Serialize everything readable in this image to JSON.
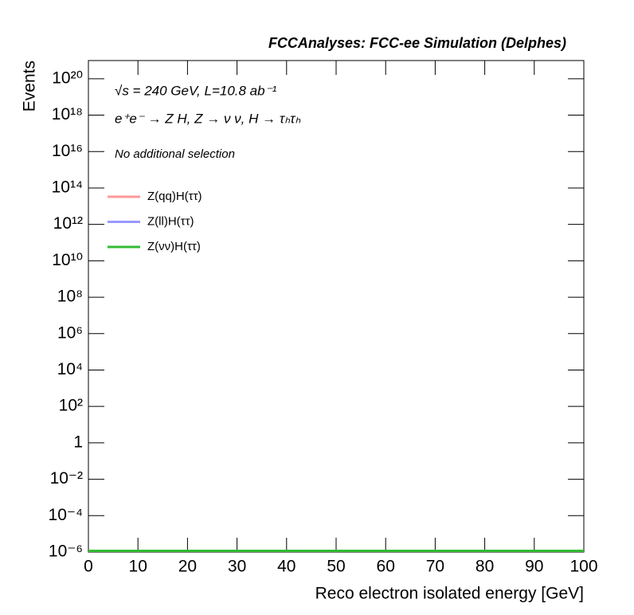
{
  "chart_data": {
    "type": "line",
    "title": "FCCAnalyses: FCC-ee Simulation (Delphes)",
    "annotations": [
      "√s = 240 GeV, L=10.8 ab⁻¹",
      "e⁺e⁻ → Z H, Z → ν ν, H → τₕτₕ",
      "No additional selection"
    ],
    "x_label": "Reco electron isolated energy [GeV]",
    "y_label": "Events",
    "x": [
      0,
      100
    ],
    "series": [
      {
        "name": "Z(qq)H(ττ)",
        "color": "#ff9999",
        "values": [
          1e-06,
          1e-06
        ]
      },
      {
        "name": "Z(ll)H(ττ)",
        "color": "#9999ff",
        "values": [
          1e-06,
          1e-06
        ]
      },
      {
        "name": "Z(νν)H(ττ)",
        "color": "#33bb33",
        "values": [
          1e-06,
          1e-06
        ]
      }
    ],
    "xlim": [
      0,
      100
    ],
    "xticks": [
      0,
      10,
      20,
      30,
      40,
      50,
      60,
      70,
      80,
      90,
      100
    ],
    "ylim": [
      1e-06,
      1e+21
    ],
    "yticks": [
      {
        "value": 1e-06,
        "label": "10⁻⁶"
      },
      {
        "value": 0.0001,
        "label": "10⁻⁴"
      },
      {
        "value": 0.01,
        "label": "10⁻²"
      },
      1,
      {
        "value": 100,
        "label": "10²"
      },
      {
        "value": 10000,
        "label": "10⁴"
      },
      {
        "value": 1000000,
        "label": "10⁶"
      },
      {
        "value": 100000000,
        "label": "10⁸"
      },
      {
        "value": 10000000000,
        "label": "10¹⁰"
      },
      {
        "value": 1000000000000,
        "label": "10¹²"
      },
      {
        "value": 100000000000000,
        "label": "10¹⁴"
      },
      {
        "value": 10000000000000000,
        "label": "10¹⁶"
      },
      {
        "value": 1000000000000000000,
        "label": "10¹⁸"
      },
      {
        "value": 100000000000000000000,
        "label": "10²⁰"
      }
    ],
    "log_y": true,
    "grid": false,
    "legend": "upper left"
  }
}
